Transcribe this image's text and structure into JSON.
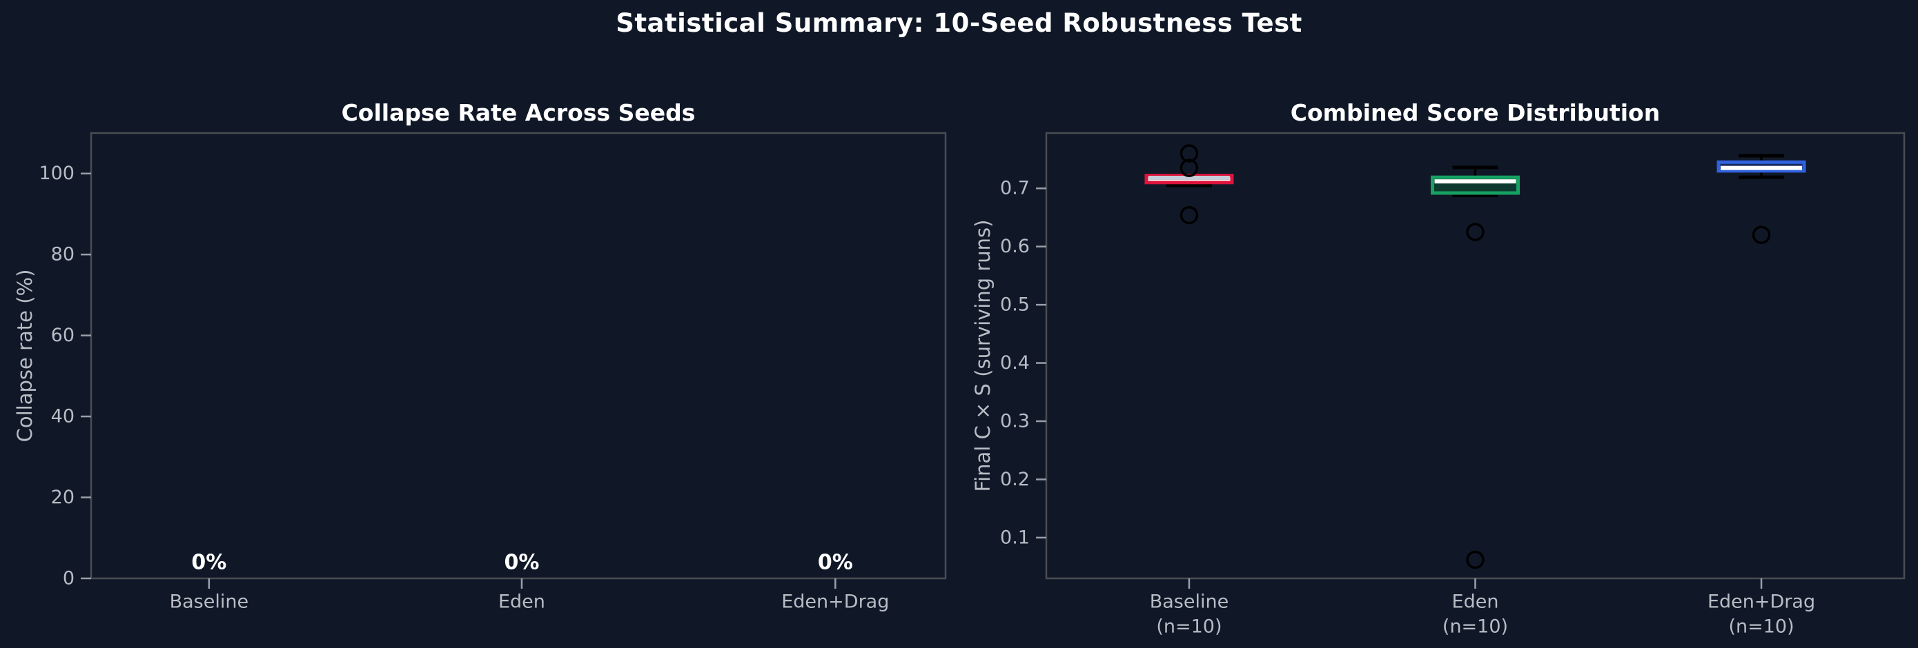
{
  "figure": {
    "title": "Statistical Summary: 10-Seed Robustness Test",
    "background_color": "#101828",
    "spine_color": "#4a4d52",
    "tick_color": "#9aa0a8",
    "text_color": "#b8bcc4",
    "title_color": "#ffffff"
  },
  "chart_data": [
    {
      "type": "bar",
      "title": "Collapse Rate Across Seeds",
      "ylabel": "Collapse rate (%)",
      "categories": [
        "Baseline",
        "Eden",
        "Eden+Drag"
      ],
      "values": [
        0,
        0,
        0
      ],
      "bar_labels": [
        "0%",
        "0%",
        "0%"
      ],
      "bar_label_color": "#ffffff",
      "ytick_values": [
        0,
        20,
        40,
        60,
        80,
        100
      ],
      "ytick_labels": [
        "0",
        "20",
        "40",
        "60",
        "80",
        "100"
      ],
      "ylim": [
        0,
        110
      ],
      "grid": false,
      "legend": null
    },
    {
      "type": "box",
      "title": "Combined Score Distribution",
      "ylabel": "Final C × S (surviving runs)",
      "categories": [
        [
          "Baseline",
          "(n=10)"
        ],
        [
          "Eden",
          "(n=10)"
        ],
        [
          "Eden+Drag",
          "(n=10)"
        ]
      ],
      "ytick_values": [
        0.1,
        0.2,
        0.3,
        0.4,
        0.5,
        0.6,
        0.7
      ],
      "ytick_labels": [
        "0.1",
        "0.2",
        "0.3",
        "0.4",
        "0.5",
        "0.6",
        "0.7"
      ],
      "ylim": [
        0.03,
        0.795
      ],
      "grid": false,
      "whisker_color": "#000000",
      "outlier_color": "#000000",
      "series": [
        {
          "name": "Baseline",
          "n": 10,
          "whisker_low": 0.705,
          "q1": 0.71,
          "median": 0.718,
          "q3": 0.722,
          "whisker_high": 0.722,
          "outliers": [
            0.76,
            0.735,
            0.654
          ],
          "edge_color": "#dc143c",
          "fill_color": "#ffffff",
          "median_color": "#c6cdd9"
        },
        {
          "name": "Eden",
          "n": 10,
          "whisker_low": 0.688,
          "q1": 0.692,
          "median": 0.712,
          "q3": 0.719,
          "whisker_high": 0.736,
          "outliers": [
            0.625,
            0.062
          ],
          "edge_color": "#16a262",
          "fill_color": "#0d3a30",
          "median_color": "#ffffff"
        },
        {
          "name": "Eden+Drag",
          "n": 10,
          "whisker_low": 0.719,
          "q1": 0.73,
          "median": 0.735,
          "q3": 0.745,
          "whisker_high": 0.756,
          "outliers": [
            0.62
          ],
          "edge_color": "#3061de",
          "fill_color": "#17285e",
          "median_color": "#ffffff"
        }
      ]
    }
  ]
}
